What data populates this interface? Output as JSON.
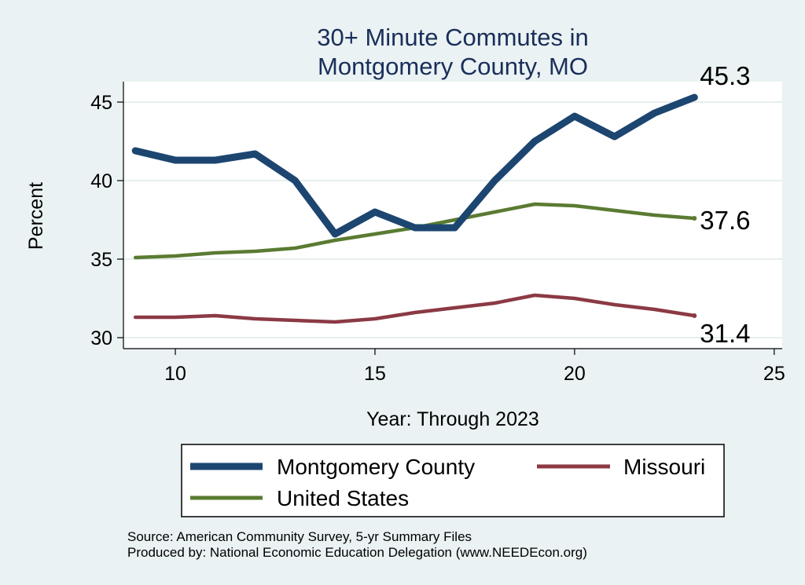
{
  "chart_data": {
    "type": "line",
    "title": [
      "30+ Minute Commutes in",
      "Montgomery County, MO"
    ],
    "xlabel": "Year: Through 2023",
    "ylabel": "Percent",
    "xlim": [
      8.7,
      25.2
    ],
    "ylim": [
      29.3,
      46.3
    ],
    "xticks": [
      10,
      15,
      20,
      25
    ],
    "yticks": [
      30,
      35,
      40,
      45
    ],
    "grid": true,
    "x": [
      9,
      10,
      11,
      12,
      13,
      14,
      15,
      16,
      17,
      18,
      19,
      20,
      21,
      22,
      23
    ],
    "series": [
      {
        "name": "Montgomery County",
        "color": "#1c4670",
        "line_weight": "thick",
        "values": [
          41.9,
          41.3,
          41.3,
          41.7,
          40.0,
          36.6,
          38.0,
          37.0,
          37.0,
          40.0,
          42.5,
          44.1,
          42.8,
          44.3,
          45.3
        ],
        "end_label": "45.3"
      },
      {
        "name": "Missouri",
        "color": "#8b3a44",
        "line_weight": "medium",
        "values": [
          31.3,
          31.3,
          31.4,
          31.2,
          31.1,
          31.0,
          31.2,
          31.6,
          31.9,
          32.2,
          32.7,
          32.5,
          32.1,
          31.8,
          31.4
        ],
        "end_label": "31.4"
      },
      {
        "name": "United States",
        "color": "#5a7b32",
        "line_weight": "medium",
        "values": [
          35.1,
          35.2,
          35.4,
          35.5,
          35.7,
          36.2,
          36.6,
          37.0,
          37.5,
          38.0,
          38.5,
          38.4,
          38.1,
          37.8,
          37.6
        ],
        "end_label": "37.6"
      }
    ],
    "legend": {
      "placement": "bottom",
      "order": [
        "Montgomery County",
        "Missouri",
        "United States"
      ]
    },
    "notes": [
      "Source: American Community Survey, 5-yr Summary Files",
      "Produced by: National Economic Education Delegation (www.NEEDEcon.org)"
    ]
  }
}
